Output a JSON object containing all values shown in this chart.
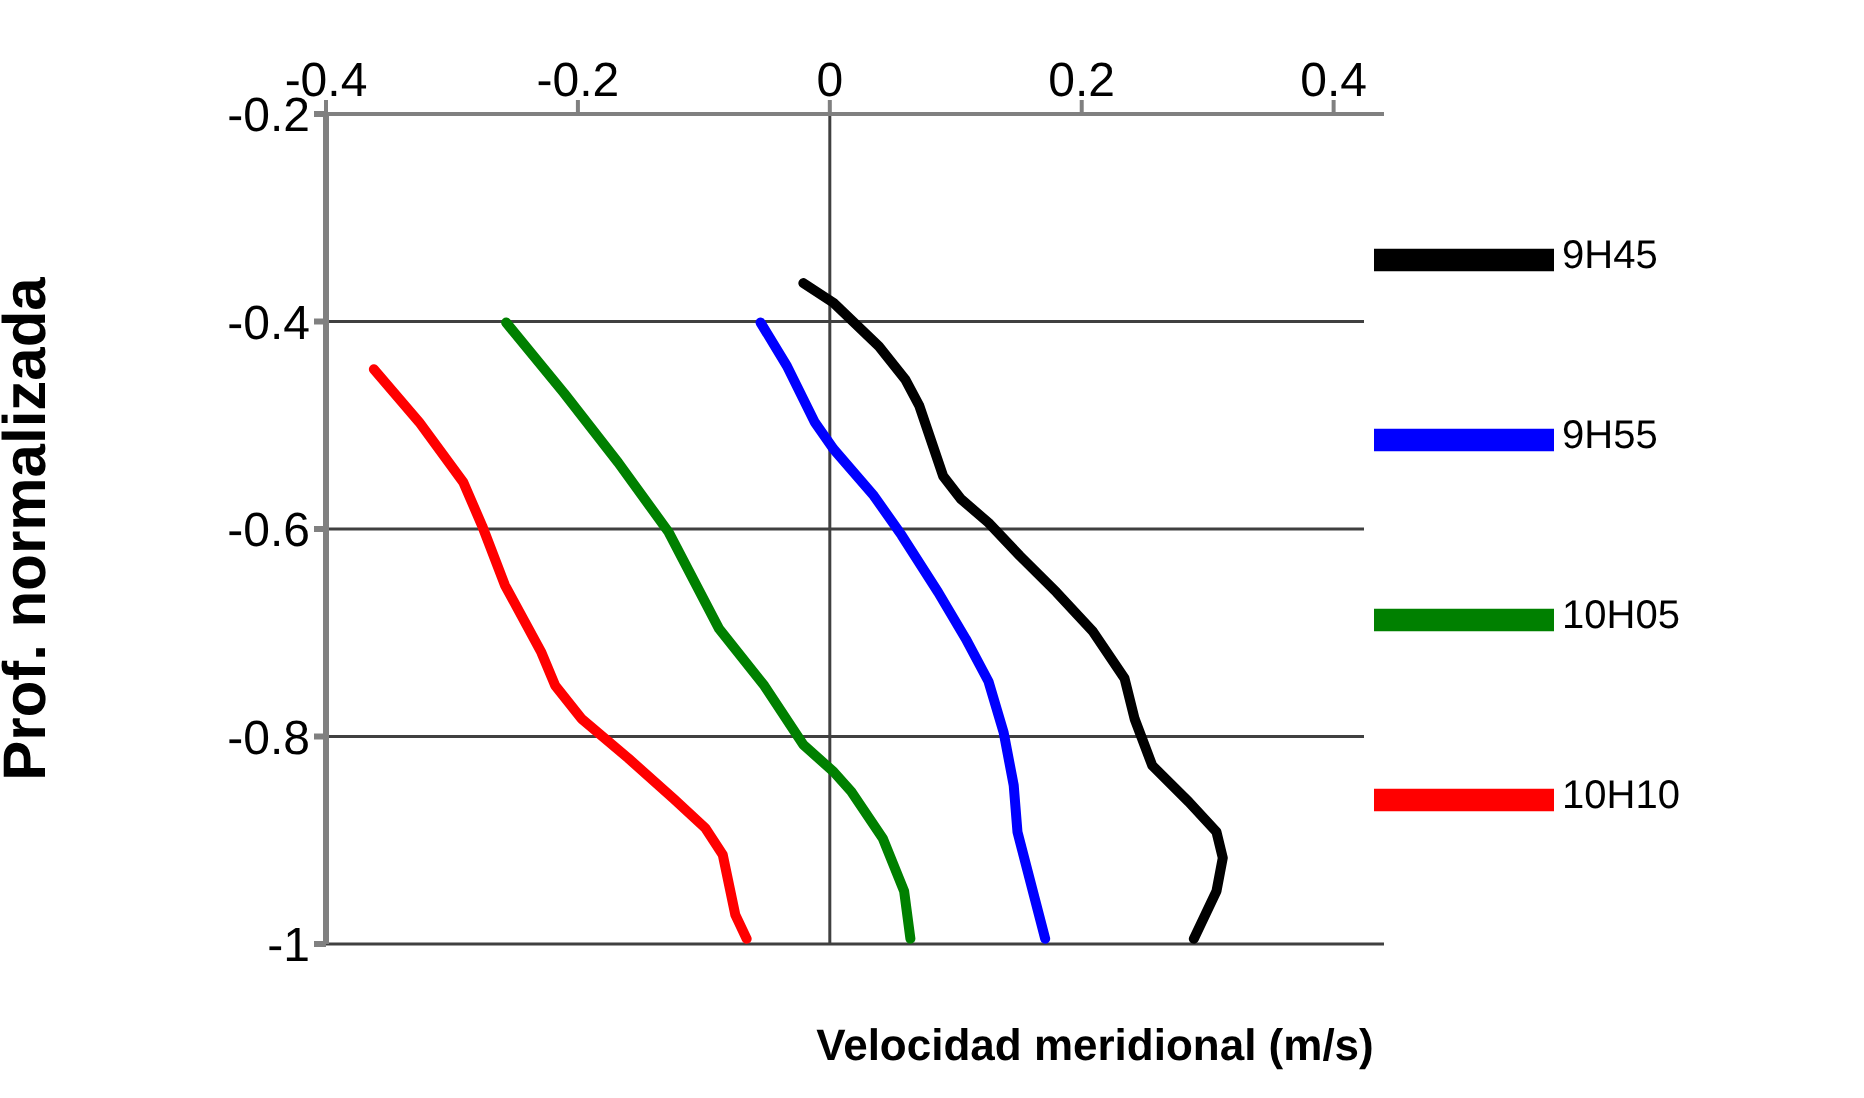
{
  "chart_data": {
    "type": "line",
    "xlabel": "Velocidad meridional (m/s)",
    "ylabel": "Prof. normalizada",
    "xlim": [
      -0.4,
      0.44
    ],
    "xticks": [
      -0.4,
      -0.2,
      0,
      0.2,
      0.4
    ],
    "ylim": [
      -1,
      -0.2
    ],
    "yticks": [
      -0.2,
      -0.4,
      -0.6,
      -0.8,
      -1
    ],
    "grid": "y",
    "legend": "top right",
    "marker": "none",
    "line_style": "solid",
    "ref_lines": [
      {
        "axis": "x",
        "value": 0,
        "color": "#404040"
      }
    ],
    "series": [
      {
        "name": "9H45",
        "color": "#000000",
        "x": [
          -0.021,
          0.003,
          0.039,
          0.06,
          0.071,
          0.09,
          0.104,
          0.126,
          0.151,
          0.18,
          0.209,
          0.234,
          0.242,
          0.256,
          0.285,
          0.307,
          0.312,
          0.307,
          0.289
        ],
        "values": [
          -0.363,
          -0.382,
          -0.424,
          -0.456,
          -0.481,
          -0.549,
          -0.571,
          -0.594,
          -0.626,
          -0.661,
          -0.699,
          -0.744,
          -0.783,
          -0.828,
          -0.863,
          -0.892,
          -0.917,
          -0.949,
          -0.995
        ]
      },
      {
        "name": "9H55",
        "color": "#0000ff",
        "x": [
          -0.055,
          -0.034,
          -0.012,
          0.003,
          0.035,
          0.057,
          0.086,
          0.108,
          0.126,
          0.138,
          0.146,
          0.149,
          0.171
        ],
        "values": [
          -0.401,
          -0.443,
          -0.497,
          -0.523,
          -0.568,
          -0.606,
          -0.661,
          -0.706,
          -0.747,
          -0.796,
          -0.847,
          -0.892,
          -0.995
        ]
      },
      {
        "name": "10H05",
        "color": "#008000",
        "x": [
          -0.257,
          -0.211,
          -0.168,
          -0.128,
          -0.088,
          -0.052,
          -0.021,
          0.003,
          0.017,
          0.042,
          0.059,
          0.064
        ],
        "values": [
          -0.401,
          -0.469,
          -0.536,
          -0.603,
          -0.696,
          -0.751,
          -0.808,
          -0.834,
          -0.853,
          -0.898,
          -0.949,
          -0.995
        ]
      },
      {
        "name": "10H10",
        "color": "#ff0000",
        "x": [
          -0.362,
          -0.326,
          -0.291,
          -0.276,
          -0.258,
          -0.229,
          -0.218,
          -0.197,
          -0.16,
          -0.124,
          -0.099,
          -0.085,
          -0.075,
          -0.066
        ],
        "values": [
          -0.446,
          -0.497,
          -0.555,
          -0.597,
          -0.654,
          -0.719,
          -0.751,
          -0.783,
          -0.821,
          -0.86,
          -0.888,
          -0.914,
          -0.972,
          -0.995
        ]
      }
    ]
  }
}
